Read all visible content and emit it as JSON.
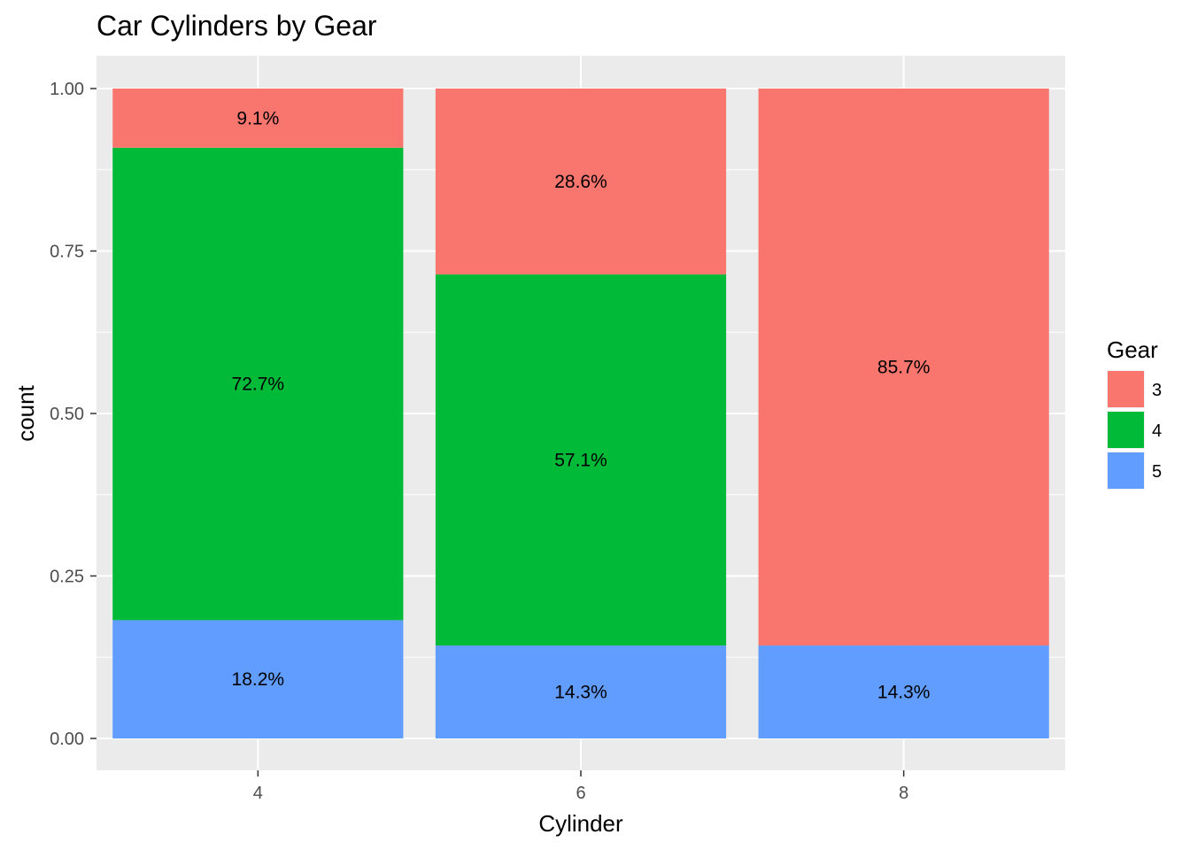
{
  "chart_data": {
    "type": "bar",
    "stacked": true,
    "normalized": true,
    "title": "Car Cylinders by Gear",
    "xlabel": "Cylinder",
    "ylabel": "count",
    "ylim": [
      0,
      1
    ],
    "y_ticks": [
      "0.00",
      "0.25",
      "0.50",
      "0.75",
      "1.00"
    ],
    "categories": [
      "4",
      "6",
      "8"
    ],
    "legend": {
      "title": "Gear",
      "position": "right"
    },
    "grid": true,
    "background": "#ebebeb",
    "series": [
      {
        "name": "5",
        "color": "#619cff",
        "values": [
          0.182,
          0.143,
          0.143
        ],
        "labels": [
          "18.2%",
          "14.3%",
          "14.3%"
        ]
      },
      {
        "name": "4",
        "color": "#00ba38",
        "values": [
          0.727,
          0.571,
          0.0
        ],
        "labels": [
          "72.7%",
          "57.1%",
          ""
        ]
      },
      {
        "name": "3",
        "color": "#f8766d",
        "values": [
          0.091,
          0.286,
          0.857
        ],
        "labels": [
          "9.1%",
          "28.6%",
          "85.7%"
        ]
      }
    ],
    "legend_order": [
      "3",
      "4",
      "5"
    ]
  }
}
